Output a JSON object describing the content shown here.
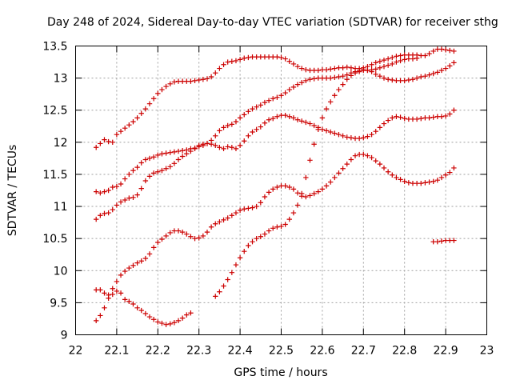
{
  "chart_data": {
    "type": "scatter",
    "title": "Day 248 of 2024, Sidereal Day-to-day VTEC variation (SDTVAR) for receiver sthg",
    "xlabel": "GPS time / hours",
    "ylabel": "SDTVAR / TECUs",
    "xlim": [
      22,
      23
    ],
    "ylim": [
      9,
      13.5
    ],
    "xticks": [
      "22",
      "22.1",
      "22.2",
      "22.3",
      "22.4",
      "22.5",
      "22.6",
      "22.7",
      "22.8",
      "22.9",
      "23"
    ],
    "yticks": [
      "9",
      "9.5",
      "10",
      "10.5",
      "11",
      "11.5",
      "12",
      "12.5",
      "13",
      "13.5"
    ],
    "grid": true,
    "marker": "plus",
    "color": "#cc0000",
    "series": [
      {
        "x": [
          22.05,
          22.06,
          22.07,
          22.08,
          22.09,
          22.1,
          22.11,
          22.12,
          22.13,
          22.14,
          22.15,
          22.16,
          22.17,
          22.18,
          22.19,
          22.2,
          22.21,
          22.22,
          22.23,
          22.24,
          22.25,
          22.26,
          22.27,
          22.28
        ],
        "y": [
          9.7,
          9.7,
          9.65,
          9.62,
          9.63,
          9.68,
          9.65,
          9.55,
          9.52,
          9.48,
          9.42,
          9.38,
          9.33,
          9.28,
          9.24,
          9.2,
          9.18,
          9.16,
          9.17,
          9.19,
          9.22,
          9.26,
          9.31,
          9.34
        ]
      },
      {
        "x": [
          22.05,
          22.06,
          22.07,
          22.08,
          22.09,
          22.1,
          22.11,
          22.12,
          22.13,
          22.14,
          22.15,
          22.16,
          22.17,
          22.18,
          22.19,
          22.2,
          22.21,
          22.22,
          22.23,
          22.24,
          22.25,
          22.26,
          22.27,
          22.28,
          22.29,
          22.3,
          22.31,
          22.32,
          22.33,
          22.34,
          22.35,
          22.36,
          22.37,
          22.38,
          22.39,
          22.4,
          22.41,
          22.42,
          22.43,
          22.44,
          22.45,
          22.46,
          22.47,
          22.48,
          22.49,
          22.5,
          22.51,
          22.52,
          22.53,
          22.54,
          22.55,
          22.56,
          22.57,
          22.58,
          22.59,
          22.6,
          22.61,
          22.62,
          22.63,
          22.64,
          22.65,
          22.66,
          22.67,
          22.68,
          22.69,
          22.7,
          22.71,
          22.72,
          22.73,
          22.74,
          22.75,
          22.76,
          22.77,
          22.78,
          22.79,
          22.8,
          22.81,
          22.82,
          22.83,
          22.84,
          22.85,
          22.86,
          22.87,
          22.88,
          22.89,
          22.9,
          22.91,
          22.92
        ],
        "y": [
          9.22,
          9.3,
          9.42,
          9.57,
          9.72,
          9.83,
          9.93,
          9.99,
          10.04,
          10.08,
          10.12,
          10.15,
          10.19,
          10.26,
          10.36,
          10.44,
          10.49,
          10.54,
          10.59,
          10.62,
          10.62,
          10.6,
          10.57,
          10.53,
          10.5,
          10.51,
          10.54,
          10.6,
          10.68,
          10.73,
          10.76,
          10.79,
          10.82,
          10.86,
          10.9,
          10.94,
          10.96,
          10.97,
          10.98,
          11.0,
          11.06,
          11.15,
          11.22,
          11.27,
          11.3,
          11.32,
          11.32,
          11.3,
          11.27,
          11.21,
          11.16,
          11.15,
          11.17,
          11.2,
          11.23,
          11.27,
          11.32,
          11.38,
          11.45,
          11.52,
          11.59,
          11.66,
          11.73,
          11.79,
          11.81,
          11.81,
          11.79,
          11.76,
          11.71,
          11.66,
          11.6,
          11.54,
          11.49,
          11.45,
          11.42,
          11.39,
          11.37,
          11.36,
          11.36,
          11.36,
          11.37,
          11.38,
          11.39,
          11.41,
          11.45,
          11.49,
          11.53,
          11.6
        ]
      },
      {
        "x": [
          22.05,
          22.06,
          22.07,
          22.08,
          22.09,
          22.1,
          22.11,
          22.12,
          22.13,
          22.14,
          22.15,
          22.16,
          22.17,
          22.18,
          22.19,
          22.2,
          22.21,
          22.22,
          22.23,
          22.24,
          22.25,
          22.26,
          22.27,
          22.28,
          22.29,
          22.3,
          22.31,
          22.32,
          22.33,
          22.34,
          22.35,
          22.36,
          22.37,
          22.38,
          22.39,
          22.4,
          22.41,
          22.42,
          22.43,
          22.44,
          22.45,
          22.46,
          22.47,
          22.48,
          22.49,
          22.5,
          22.51,
          22.52,
          22.53,
          22.54,
          22.55,
          22.56,
          22.57,
          22.58,
          22.59,
          22.6,
          22.61,
          22.62,
          22.63,
          22.64,
          22.65,
          22.66,
          22.67,
          22.68,
          22.69,
          22.7,
          22.71,
          22.72,
          22.73,
          22.74,
          22.75,
          22.76,
          22.77,
          22.78,
          22.79,
          22.8,
          22.81,
          22.82,
          22.83,
          22.84,
          22.85,
          22.86,
          22.87,
          22.88,
          22.89,
          22.9,
          22.91,
          22.92
        ],
        "y": [
          10.8,
          10.86,
          10.89,
          10.9,
          10.95,
          11.02,
          11.07,
          11.1,
          11.13,
          11.14,
          11.18,
          11.28,
          11.4,
          11.47,
          11.52,
          11.54,
          11.56,
          11.59,
          11.62,
          11.67,
          11.73,
          11.78,
          11.82,
          11.86,
          11.9,
          11.95,
          11.97,
          11.98,
          11.97,
          11.95,
          11.92,
          11.9,
          11.93,
          11.92,
          11.9,
          11.95,
          12.02,
          12.1,
          12.16,
          12.2,
          12.24,
          12.3,
          12.35,
          12.37,
          12.4,
          12.42,
          12.42,
          12.4,
          12.38,
          12.35,
          12.33,
          12.31,
          12.29,
          12.26,
          12.23,
          12.2,
          12.18,
          12.16,
          12.14,
          12.12,
          12.1,
          12.08,
          12.07,
          12.06,
          12.06,
          12.07,
          12.09,
          12.12,
          12.17,
          12.23,
          12.29,
          12.34,
          12.38,
          12.4,
          12.39,
          12.37,
          12.36,
          12.36,
          12.36,
          12.37,
          12.38,
          12.38,
          12.39,
          12.4,
          12.4,
          12.41,
          12.44,
          12.5
        ]
      },
      {
        "x": [
          22.05,
          22.06,
          22.07,
          22.08,
          22.09,
          22.1,
          22.11,
          22.12,
          22.13,
          22.14,
          22.15,
          22.16,
          22.17,
          22.18,
          22.19,
          22.2,
          22.21,
          22.22,
          22.23,
          22.24,
          22.25,
          22.26,
          22.27,
          22.28,
          22.29,
          22.3,
          22.31,
          22.32,
          22.33,
          22.34,
          22.35,
          22.36,
          22.37,
          22.38,
          22.39,
          22.4,
          22.41,
          22.42,
          22.43,
          22.44,
          22.45,
          22.46,
          22.47,
          22.48,
          22.49,
          22.5,
          22.51,
          22.52,
          22.53,
          22.54,
          22.55,
          22.56,
          22.57,
          22.58,
          22.59,
          22.6,
          22.61,
          22.62,
          22.63,
          22.64,
          22.65,
          22.66,
          22.67,
          22.68,
          22.69,
          22.7,
          22.71,
          22.72,
          22.73,
          22.74,
          22.75,
          22.76,
          22.77,
          22.78,
          22.79,
          22.8,
          22.81,
          22.82,
          22.83,
          22.84,
          22.85,
          22.86,
          22.87,
          22.88,
          22.89,
          22.9,
          22.91,
          22.92
        ],
        "y": [
          11.23,
          11.21,
          11.23,
          11.25,
          11.3,
          11.31,
          11.35,
          11.43,
          11.5,
          11.56,
          11.61,
          11.68,
          11.73,
          11.75,
          11.77,
          11.8,
          11.82,
          11.83,
          11.84,
          11.85,
          11.86,
          11.87,
          11.88,
          11.9,
          11.91,
          11.93,
          11.95,
          11.98,
          12.03,
          12.1,
          12.18,
          12.23,
          12.26,
          12.28,
          12.32,
          12.38,
          12.43,
          12.48,
          12.52,
          12.55,
          12.58,
          12.62,
          12.65,
          12.68,
          12.7,
          12.73,
          12.77,
          12.82,
          12.86,
          12.9,
          12.93,
          12.96,
          12.98,
          12.99,
          13.0,
          13.0,
          13.0,
          13.0,
          13.01,
          13.02,
          13.03,
          13.05,
          13.08,
          13.1,
          13.12,
          13.13,
          13.12,
          13.1,
          13.06,
          13.03,
          13.0,
          12.98,
          12.97,
          12.96,
          12.96,
          12.96,
          12.97,
          12.98,
          13.0,
          13.02,
          13.03,
          13.05,
          13.07,
          13.09,
          13.12,
          13.15,
          13.19,
          13.24
        ]
      },
      {
        "x": [
          22.05,
          22.06,
          22.07,
          22.08,
          22.09,
          22.1,
          22.11,
          22.12,
          22.13,
          22.14,
          22.15,
          22.16,
          22.17,
          22.18,
          22.19,
          22.2,
          22.21,
          22.22,
          22.23,
          22.24,
          22.25,
          22.26,
          22.27,
          22.28,
          22.29,
          22.3,
          22.31,
          22.32,
          22.33,
          22.34,
          22.35,
          22.36,
          22.37,
          22.38,
          22.39,
          22.4,
          22.41,
          22.42,
          22.43,
          22.44,
          22.45,
          22.46,
          22.47,
          22.48,
          22.49,
          22.5,
          22.51,
          22.52,
          22.53,
          22.54,
          22.55,
          22.56,
          22.57,
          22.58,
          22.59,
          22.6,
          22.61,
          22.62,
          22.63,
          22.64,
          22.65,
          22.66,
          22.67,
          22.68,
          22.69,
          22.7,
          22.71,
          22.72,
          22.73,
          22.74,
          22.75,
          22.76,
          22.77,
          22.78,
          22.79,
          22.8,
          22.81,
          22.82,
          22.83,
          22.84,
          22.85,
          22.86,
          22.87,
          22.88,
          22.89,
          22.9,
          22.91,
          22.92
        ],
        "y": [
          11.92,
          11.98,
          12.04,
          12.01,
          12.0,
          12.12,
          12.17,
          12.22,
          12.27,
          12.32,
          12.38,
          12.45,
          12.52,
          12.6,
          12.68,
          12.76,
          12.82,
          12.87,
          12.91,
          12.94,
          12.95,
          12.95,
          12.95,
          12.95,
          12.96,
          12.97,
          12.98,
          12.99,
          13.02,
          13.08,
          13.15,
          13.21,
          13.25,
          13.26,
          13.27,
          13.29,
          13.31,
          13.32,
          13.33,
          13.33,
          13.33,
          13.33,
          13.33,
          13.33,
          13.33,
          13.32,
          13.3,
          13.26,
          13.22,
          13.18,
          13.15,
          13.13,
          13.12,
          13.12,
          13.12,
          13.13,
          13.13,
          13.14,
          13.15,
          13.16,
          13.16,
          13.17,
          13.16,
          13.15,
          13.15,
          13.16,
          13.18,
          13.21,
          13.24,
          13.26,
          13.28,
          13.3,
          13.32,
          13.34,
          13.35,
          13.36,
          13.36,
          13.36,
          13.36,
          13.35,
          13.35,
          13.38,
          13.42,
          13.45,
          13.45,
          13.44,
          13.43,
          13.42
        ]
      },
      {
        "x": [
          22.34,
          22.35,
          22.36,
          22.37,
          22.38,
          22.39,
          22.4,
          22.41,
          22.42,
          22.43,
          22.44,
          22.45,
          22.46,
          22.47,
          22.48,
          22.49,
          22.5,
          22.51,
          22.52,
          22.53,
          22.54,
          22.55,
          22.56,
          22.57,
          22.58,
          22.59,
          22.6,
          22.61,
          22.62,
          22.63,
          22.64,
          22.65,
          22.66,
          22.67,
          22.68,
          22.69,
          22.7,
          22.71,
          22.72,
          22.73,
          22.74,
          22.75,
          22.76,
          22.77,
          22.78,
          22.79,
          22.8,
          22.81,
          22.82,
          22.83
        ],
        "y": [
          9.6,
          9.67,
          9.76,
          9.86,
          9.97,
          10.09,
          10.2,
          10.3,
          10.39,
          10.45,
          10.5,
          10.53,
          10.57,
          10.62,
          10.66,
          10.68,
          10.69,
          10.72,
          10.8,
          10.9,
          11.02,
          11.2,
          11.45,
          11.72,
          11.97,
          12.2,
          12.38,
          12.52,
          12.63,
          12.73,
          12.82,
          12.9,
          12.98,
          13.04,
          13.08,
          13.1,
          13.12,
          13.12,
          13.13,
          13.14,
          13.16,
          13.18,
          13.2,
          13.22,
          13.25,
          13.27,
          13.29,
          13.3,
          13.3,
          13.31
        ]
      },
      {
        "x": [
          22.87,
          22.88,
          22.89,
          22.9,
          22.91,
          22.92
        ],
        "y": [
          10.45,
          10.45,
          10.46,
          10.47,
          10.47,
          10.47
        ]
      }
    ]
  }
}
